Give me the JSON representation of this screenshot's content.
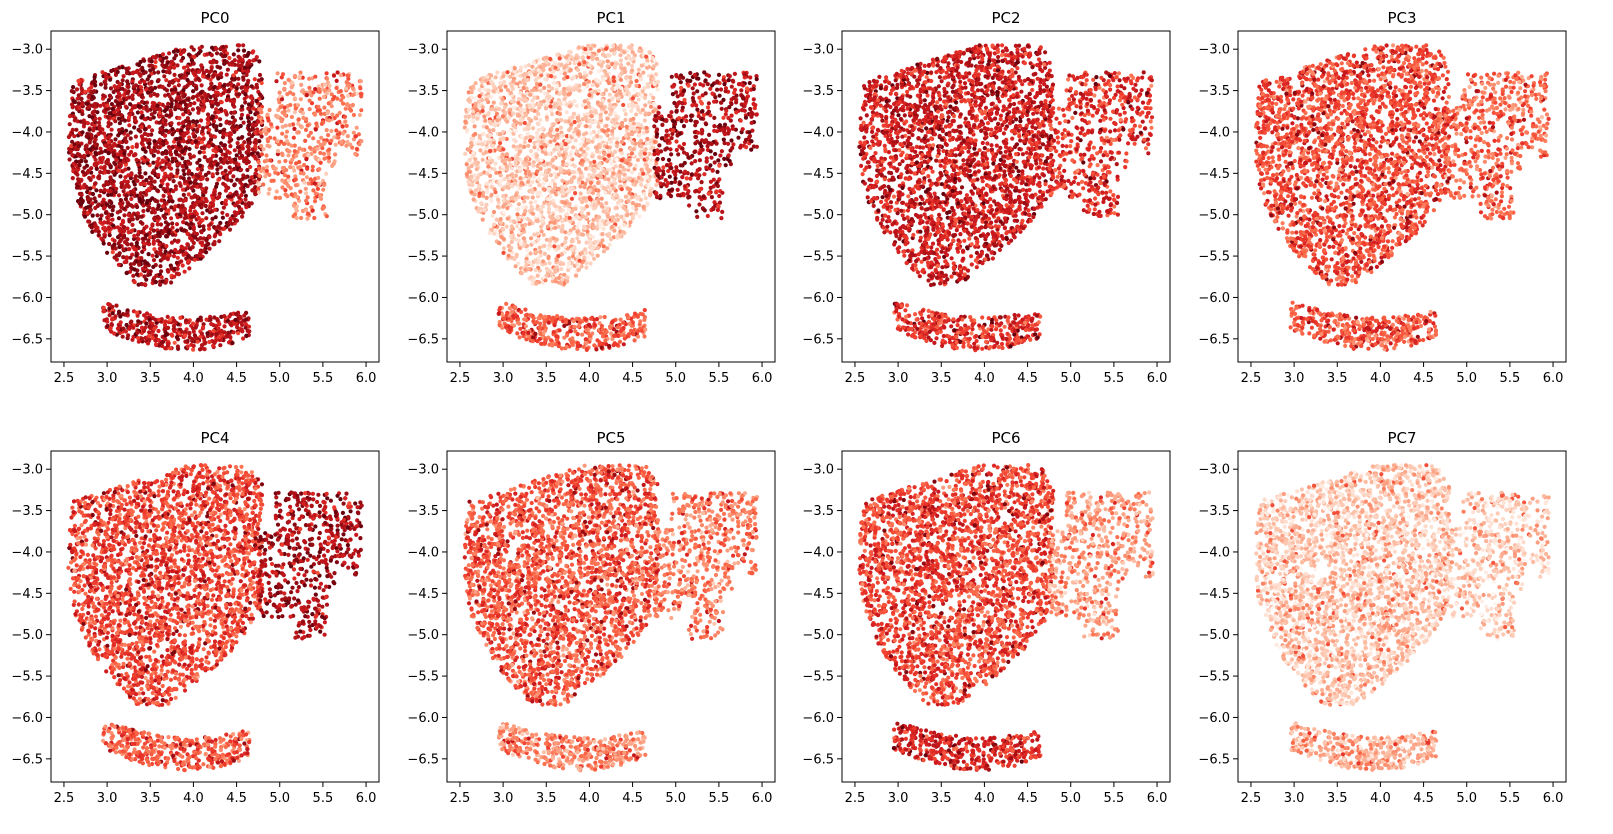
{
  "figure": {
    "rows": 2,
    "cols": 4,
    "colormap": [
      "#fff5f0",
      "#fee0d2",
      "#fcbba1",
      "#fc9272",
      "#fb6a4a",
      "#ef3b2c",
      "#cb181d",
      "#a50f15",
      "#67000d"
    ]
  },
  "chart_data": [
    {
      "type": "scatter",
      "title": "PC0",
      "xlim": [
        2.35,
        6.15
      ],
      "ylim": [
        -6.78,
        -2.78
      ],
      "xticks": [
        "2.5",
        "3.0",
        "3.5",
        "4.0",
        "4.5",
        "5.0",
        "5.5",
        "6.0"
      ],
      "yticks": [
        "-3.0",
        "-3.5",
        "-4.0",
        "-4.5",
        "-5.0",
        "-5.5",
        "-6.0",
        "-6.5"
      ],
      "intensity": {
        "blob_main": 0.86,
        "blob_side": 0.42,
        "band": 0.8
      }
    },
    {
      "type": "scatter",
      "title": "PC1",
      "xlim": [
        2.35,
        6.15
      ],
      "ylim": [
        -6.78,
        -2.78
      ],
      "xticks": [
        "2.5",
        "3.0",
        "3.5",
        "4.0",
        "4.5",
        "5.0",
        "5.5",
        "6.0"
      ],
      "yticks": [
        "-3.0",
        "-3.5",
        "-4.0",
        "-4.5",
        "-5.0",
        "-5.5",
        "-6.0",
        "-6.5"
      ],
      "intensity": {
        "blob_main": 0.22,
        "blob_side": 0.82,
        "band": 0.55
      }
    },
    {
      "type": "scatter",
      "title": "PC2",
      "xlim": [
        2.35,
        6.15
      ],
      "ylim": [
        -6.78,
        -2.78
      ],
      "xticks": [
        "2.5",
        "3.0",
        "3.5",
        "4.0",
        "4.5",
        "5.0",
        "5.5",
        "6.0"
      ],
      "yticks": [
        "-3.0",
        "-3.5",
        "-4.0",
        "-4.5",
        "-5.0",
        "-5.5",
        "-6.0",
        "-6.5"
      ],
      "intensity": {
        "blob_main": 0.74,
        "blob_side": 0.66,
        "band": 0.65
      }
    },
    {
      "type": "scatter",
      "title": "PC3",
      "xlim": [
        2.35,
        6.15
      ],
      "ylim": [
        -6.78,
        -2.78
      ],
      "xticks": [
        "2.5",
        "3.0",
        "3.5",
        "4.0",
        "4.5",
        "5.0",
        "5.5",
        "6.0"
      ],
      "yticks": [
        "-3.0",
        "-3.5",
        "-4.0",
        "-4.5",
        "-5.0",
        "-5.5",
        "-6.0",
        "-6.5"
      ],
      "intensity": {
        "blob_main": 0.58,
        "blob_side": 0.5,
        "band": 0.55
      }
    },
    {
      "type": "scatter",
      "title": "PC4",
      "xlim": [
        2.35,
        6.15
      ],
      "ylim": [
        -6.78,
        -2.78
      ],
      "xticks": [
        "2.5",
        "3.0",
        "3.5",
        "4.0",
        "4.5",
        "5.0",
        "5.5",
        "6.0"
      ],
      "yticks": [
        "-3.0",
        "-3.5",
        "-4.0",
        "-4.5",
        "-5.0",
        "-5.5",
        "-6.0",
        "-6.5"
      ],
      "intensity": {
        "blob_main": 0.6,
        "blob_side": 0.85,
        "band": 0.55
      }
    },
    {
      "type": "scatter",
      "title": "PC5",
      "xlim": [
        2.35,
        6.15
      ],
      "ylim": [
        -6.78,
        -2.78
      ],
      "xticks": [
        "2.5",
        "3.0",
        "3.5",
        "4.0",
        "4.5",
        "5.0",
        "5.5",
        "6.0"
      ],
      "yticks": [
        "-3.0",
        "-3.5",
        "-4.0",
        "-4.5",
        "-5.0",
        "-5.5",
        "-6.0",
        "-6.5"
      ],
      "intensity": {
        "blob_main": 0.55,
        "blob_side": 0.45,
        "band": 0.4
      }
    },
    {
      "type": "scatter",
      "title": "PC6",
      "xlim": [
        2.35,
        6.15
      ],
      "ylim": [
        -6.78,
        -2.78
      ],
      "xticks": [
        "2.5",
        "3.0",
        "3.5",
        "4.0",
        "4.5",
        "5.0",
        "5.5",
        "6.0"
      ],
      "yticks": [
        "-3.0",
        "-3.5",
        "-4.0",
        "-4.5",
        "-5.0",
        "-5.5",
        "-6.0",
        "-6.5"
      ],
      "intensity": {
        "blob_main": 0.6,
        "blob_side": 0.35,
        "band": 0.7
      }
    },
    {
      "type": "scatter",
      "title": "PC7",
      "xlim": [
        2.35,
        6.15
      ],
      "ylim": [
        -6.78,
        -2.78
      ],
      "xticks": [
        "2.5",
        "3.0",
        "3.5",
        "4.0",
        "4.5",
        "5.0",
        "5.5",
        "6.0"
      ],
      "yticks": [
        "-3.0",
        "-3.5",
        "-4.0",
        "-4.5",
        "-5.0",
        "-5.5",
        "-6.0",
        "-6.5"
      ],
      "intensity": {
        "blob_main": 0.22,
        "blob_side": 0.2,
        "band": 0.3
      }
    }
  ]
}
